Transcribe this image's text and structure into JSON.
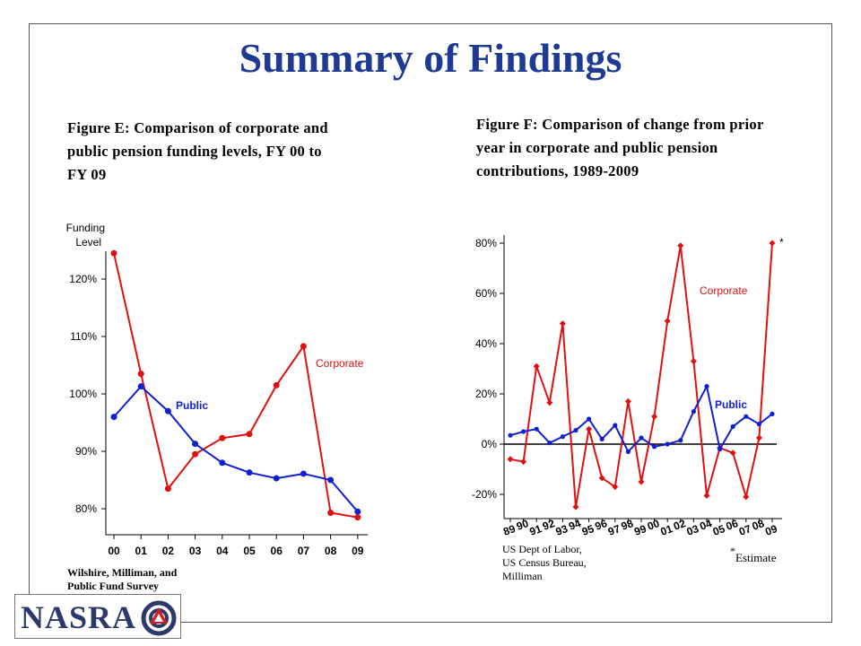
{
  "page": {
    "title": "Summary of Findings"
  },
  "logo": {
    "text": "NASRA",
    "icon": "triangle-knot-logo-icon"
  },
  "colors": {
    "corporate": "#e01010",
    "public": "#1020d0",
    "title": "#1f3a93"
  },
  "chart_data": [
    {
      "type": "line",
      "title": "Figure E: Comparison of corporate and public pension funding levels, FY 00 to FY 09",
      "ylabel": "Funding Level",
      "xlabel": "",
      "categories": [
        "00",
        "01",
        "02",
        "03",
        "04",
        "05",
        "06",
        "07",
        "08",
        "09"
      ],
      "yticks": [
        "80%",
        "90%",
        "100%",
        "110%",
        "120%"
      ],
      "ylim": [
        75,
        128
      ],
      "series": [
        {
          "name": "Corporate",
          "values": [
            124.5,
            103.5,
            83.5,
            89.5,
            92.3,
            93.0,
            101.5,
            108.3,
            79.3,
            78.5
          ]
        },
        {
          "name": "Public",
          "values": [
            96.0,
            101.3,
            97.0,
            91.3,
            88.0,
            86.3,
            85.3,
            86.1,
            85.0,
            79.5
          ]
        }
      ],
      "source": [
        "Wilshire, Milliman, and",
        "Public Fund Survey"
      ]
    },
    {
      "type": "line",
      "title": "Figure F: Comparison of change from prior year in corporate and public pension contributions, 1989-2009",
      "xlabel": "",
      "ylabel": "",
      "categories": [
        "89",
        "90",
        "91",
        "92",
        "93",
        "94",
        "95",
        "96",
        "97",
        "98",
        "99",
        "00",
        "01",
        "02",
        "03",
        "04",
        "05",
        "06",
        "07",
        "08",
        "09"
      ],
      "yticks": [
        "-20%",
        "0%",
        "20%",
        "40%",
        "60%",
        "80%"
      ],
      "ylim": [
        -29,
        81
      ],
      "series": [
        {
          "name": "Corporate",
          "values": [
            -6,
            -7,
            31,
            16.5,
            48,
            -25,
            6,
            -13.5,
            -17,
            17,
            -15,
            11,
            49,
            79,
            33,
            -20.5,
            -1.5,
            -3.5,
            -21,
            2.5,
            80
          ]
        },
        {
          "name": "Public",
          "values": [
            3.5,
            5,
            6,
            0.5,
            3,
            5.5,
            10,
            2,
            7.5,
            -3,
            2.5,
            -1,
            0,
            1.5,
            13,
            23,
            -2,
            7,
            11,
            8,
            12
          ]
        }
      ],
      "annotations": {
        "estimate_marker": "*",
        "estimate_label": "Estimate"
      },
      "source": [
        "US Dept of Labor,",
        "US Census Bureau,",
        "Milliman"
      ]
    }
  ]
}
